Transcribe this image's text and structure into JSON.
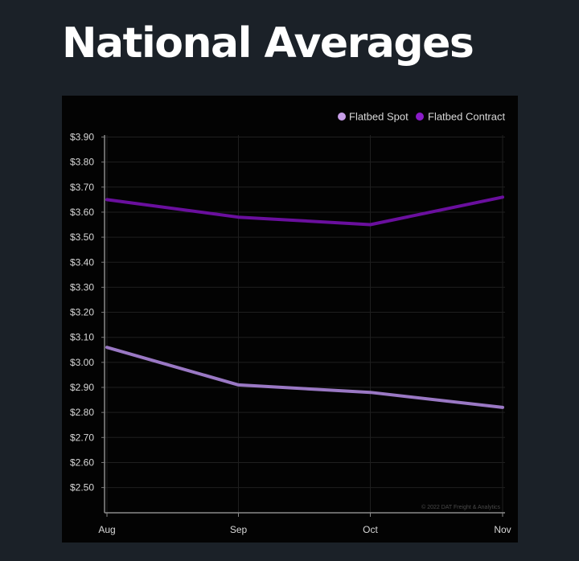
{
  "page": {
    "title": "National Averages"
  },
  "chart_data": {
    "type": "line",
    "title": "",
    "xlabel": "",
    "ylabel": "",
    "categories": [
      "Aug",
      "Sep",
      "Oct",
      "Nov"
    ],
    "ylim": [
      2.4,
      3.9
    ],
    "y_ticks": [
      "$3.90",
      "$3.80",
      "$3.70",
      "$3.60",
      "$3.50",
      "$3.40",
      "$3.30",
      "$3.20",
      "$3.10",
      "$3.00",
      "$2.90",
      "$2.80",
      "$2.70",
      "$2.60",
      "$2.50"
    ],
    "y_tick_values": [
      3.9,
      3.8,
      3.7,
      3.6,
      3.5,
      3.4,
      3.3,
      3.2,
      3.1,
      3.0,
      2.9,
      2.8,
      2.7,
      2.6,
      2.5
    ],
    "series": [
      {
        "name": "Flatbed Spot",
        "color": "#9a78c4",
        "legend_color": "#c79ee8",
        "values": [
          3.06,
          2.91,
          2.88,
          2.82
        ]
      },
      {
        "name": "Flatbed Contract",
        "color": "#6a0f9e",
        "legend_color": "#8a1cc8",
        "values": [
          3.65,
          3.58,
          3.55,
          3.66
        ]
      }
    ],
    "grid": true,
    "legend_position": "top-right",
    "watermark": "© 2022 DAT Freight & Analytics"
  }
}
